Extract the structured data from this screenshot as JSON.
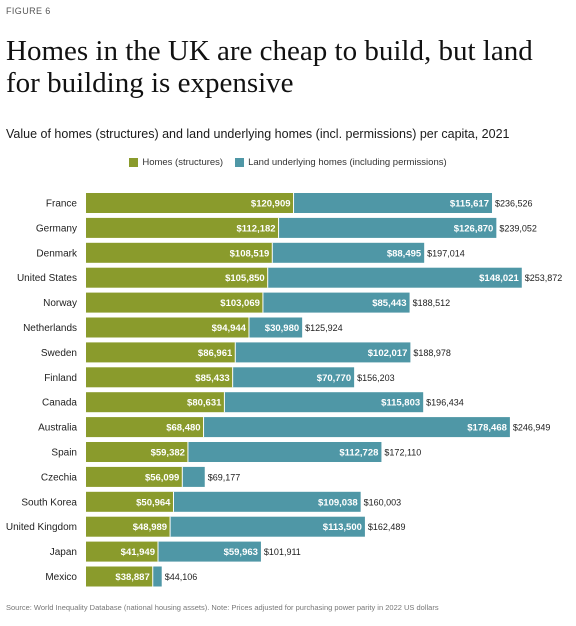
{
  "figure_label": "FIGURE 6",
  "source": "Source: World Inequality Database (national housing assets). Note: Prices adjusted for purchasing power parity in 2022 US dollars",
  "colors": {
    "homes": "#8a9b2c",
    "land": "#4f97a6"
  },
  "chart_data": {
    "type": "bar",
    "orientation": "horizontal",
    "stacked": true,
    "title": "Homes in the UK are cheap to build, but land for building is expensive",
    "subtitle": "Value of homes (structures) and land underlying homes (incl. permissions) per capita, 2021",
    "xlim": [
      0,
      254000
    ],
    "grid": false,
    "legend": "top-center",
    "categories": [
      "France",
      "Germany",
      "Denmark",
      "United States",
      "Norway",
      "Netherlands",
      "Sweden",
      "Finland",
      "Canada",
      "Australia",
      "Spain",
      "Czechia",
      "South Korea",
      "United Kingdom",
      "Japan",
      "Mexico"
    ],
    "series": [
      {
        "name": "Homes (structures)",
        "values": [
          120909,
          112182,
          108519,
          105850,
          103069,
          94944,
          86961,
          85433,
          80631,
          68480,
          59382,
          56099,
          50964,
          48989,
          41949,
          38887
        ],
        "labels": [
          "$120,909",
          "$112,182",
          "$108,519",
          "$105,850",
          "$103,069",
          "$94,944",
          "$86,961",
          "$85,433",
          "$80,631",
          "$68,480",
          "$59,382",
          "$56,099",
          "$50,964",
          "$48,989",
          "$41,949",
          "$38,887"
        ]
      },
      {
        "name": "Land underlying homes (including permissions)",
        "values": [
          115617,
          126870,
          88495,
          148021,
          85443,
          30980,
          102017,
          70770,
          115803,
          178468,
          112728,
          13078,
          109038,
          113500,
          59963,
          5219
        ],
        "labels": [
          "$115,617",
          "$126,870",
          "$88,495",
          "$148,021",
          "$85,443",
          "$30,980",
          "$102,017",
          "$70,770",
          "$115,803",
          "$178,468",
          "$112,728",
          "",
          "$109,038",
          "$113,500",
          "$59,963",
          ""
        ]
      }
    ],
    "totals": [
      236526,
      239052,
      197014,
      253872,
      188512,
      125924,
      188978,
      156203,
      196434,
      246949,
      172110,
      69177,
      160003,
      162489,
      101911,
      44106
    ],
    "total_labels": [
      "$236,526",
      "$239,052",
      "$197,014",
      "$253,872",
      "$188,512",
      "$125,924",
      "$188,978",
      "$156,203",
      "$196,434",
      "$246,949",
      "$172,110",
      "$69,177",
      "$160,003",
      "$162,489",
      "$101,911",
      "$44,106"
    ]
  }
}
